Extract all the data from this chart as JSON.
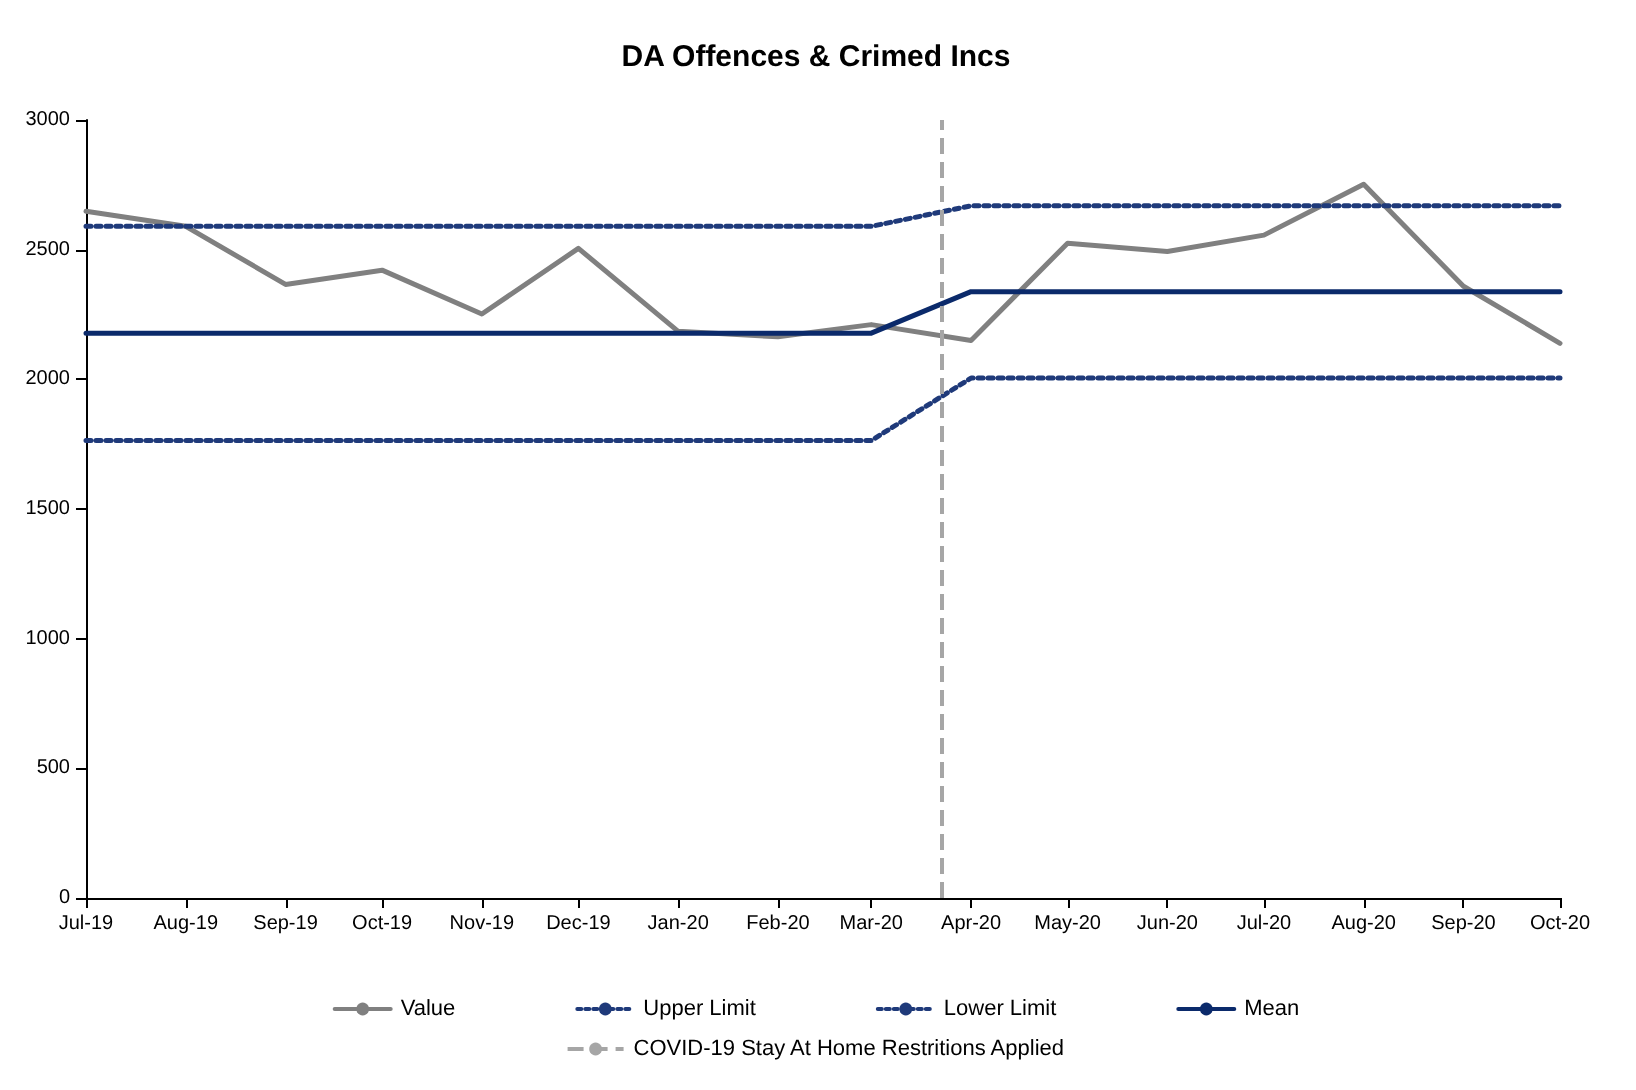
{
  "chart_data": {
    "type": "line",
    "title": "DA Offences & Crimed Incs",
    "x": [
      "2019-07",
      "2019-08",
      "2019-09",
      "2019-10",
      "2019-11",
      "2019-12",
      "2020-01",
      "2020-02",
      "2020-03",
      "2020-04",
      "2020-05",
      "2020-06",
      "2020-07",
      "2020-08",
      "2020-09",
      "2020-10"
    ],
    "series": [
      {
        "name": "Value",
        "color": "#808080",
        "line_style": "solid",
        "values": [
          2648,
          2590,
          2366,
          2421,
          2252,
          2505,
          2185,
          2164,
          2211,
          2150,
          2525,
          2493,
          2556,
          2752,
          2359,
          2139
        ]
      },
      {
        "name": "Upper Limit",
        "color": "#1f3a7a",
        "line_style": "dotted",
        "values": [
          2590,
          2590,
          2590,
          2590,
          2590,
          2590,
          2590,
          2590,
          2590,
          2669,
          2669,
          2669,
          2669,
          2669,
          2669,
          2669
        ]
      },
      {
        "name": "Lower Limit",
        "color": "#1f3a7a",
        "line_style": "dotted",
        "values": [
          1764,
          1764,
          1764,
          1764,
          1764,
          1764,
          1764,
          1764,
          1764,
          2005,
          2005,
          2005,
          2005,
          2005,
          2005,
          2005
        ]
      },
      {
        "name": "Mean",
        "color": "#0b2a6b",
        "line_style": "solid",
        "values": [
          2178,
          2178,
          2178,
          2178,
          2178,
          2178,
          2178,
          2178,
          2178,
          2338,
          2338,
          2338,
          2338,
          2338,
          2338,
          2338
        ]
      }
    ],
    "xlim": [
      "2019-07",
      "2020-10"
    ],
    "xticks": [
      {
        "value": "2019-07",
        "label": "Jul-19"
      },
      {
        "value": "2019-08",
        "label": "Aug-19"
      },
      {
        "value": "2019-09",
        "label": "Sep-19"
      },
      {
        "value": "2019-10",
        "label": "Oct-19"
      },
      {
        "value": "2019-11",
        "label": "Nov-19"
      },
      {
        "value": "2019-12",
        "label": "Dec-19"
      },
      {
        "value": "2020-01",
        "label": "Jan-20"
      },
      {
        "value": "2020-02",
        "label": "Feb-20"
      },
      {
        "value": "2020-03",
        "label": "Mar-20"
      },
      {
        "value": "2020-04",
        "label": "Apr-20"
      },
      {
        "value": "2020-05",
        "label": "May-20"
      },
      {
        "value": "2020-06",
        "label": "Jun-20"
      },
      {
        "value": "2020-07",
        "label": "Jul-20"
      },
      {
        "value": "2020-08",
        "label": "Aug-20"
      },
      {
        "value": "2020-09",
        "label": "Sep-20"
      },
      {
        "value": "2020-10",
        "label": "Oct-20"
      }
    ],
    "ylim": [
      0,
      3000
    ],
    "yticks": [
      0,
      500,
      1000,
      1500,
      2000,
      2500,
      3000
    ],
    "ref_lines": [
      {
        "axis": "x",
        "value": "2020-03-23",
        "label": "COVID-19 Stay At Home Restritions Applied",
        "color": "#a6a6a6",
        "line_style": "dashed"
      }
    ],
    "grid": false,
    "legend": "bottom",
    "marker": "none"
  }
}
